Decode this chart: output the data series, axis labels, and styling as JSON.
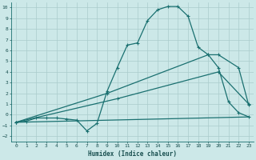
{
  "xlabel": "Humidex (Indice chaleur)",
  "bg_color": "#cce8e8",
  "grid_color": "#aacccc",
  "line_color": "#1a7070",
  "xlim": [
    -0.5,
    23.5
  ],
  "ylim": [
    -2.5,
    10.5
  ],
  "xticks": [
    0,
    1,
    2,
    3,
    4,
    5,
    6,
    7,
    8,
    9,
    10,
    11,
    12,
    13,
    14,
    15,
    16,
    17,
    18,
    19,
    20,
    21,
    22,
    23
  ],
  "yticks": [
    -2,
    -1,
    0,
    1,
    2,
    3,
    4,
    5,
    6,
    7,
    8,
    9,
    10
  ],
  "line1_x": [
    0,
    1,
    2,
    3,
    4,
    5,
    6,
    7,
    8,
    9,
    10,
    11,
    12,
    13,
    14,
    15,
    16,
    17,
    18,
    19,
    20,
    21,
    22,
    23
  ],
  "line1_y": [
    -0.7,
    -0.6,
    -0.3,
    -0.3,
    -0.3,
    -0.4,
    -0.5,
    -1.5,
    -0.8,
    2.2,
    4.4,
    6.5,
    6.7,
    8.8,
    9.8,
    10.1,
    10.1,
    9.2,
    6.3,
    5.6,
    4.4,
    1.2,
    0.2,
    -0.2
  ],
  "line2_x": [
    0,
    23
  ],
  "line2_y": [
    -0.7,
    -0.2
  ],
  "line3_x": [
    0,
    10,
    20,
    23
  ],
  "line3_y": [
    -0.7,
    1.5,
    4.0,
    1.0
  ],
  "line4_x": [
    0,
    9,
    19,
    20,
    22,
    23
  ],
  "line4_y": [
    -0.7,
    2.0,
    5.6,
    5.6,
    4.4,
    0.9
  ]
}
